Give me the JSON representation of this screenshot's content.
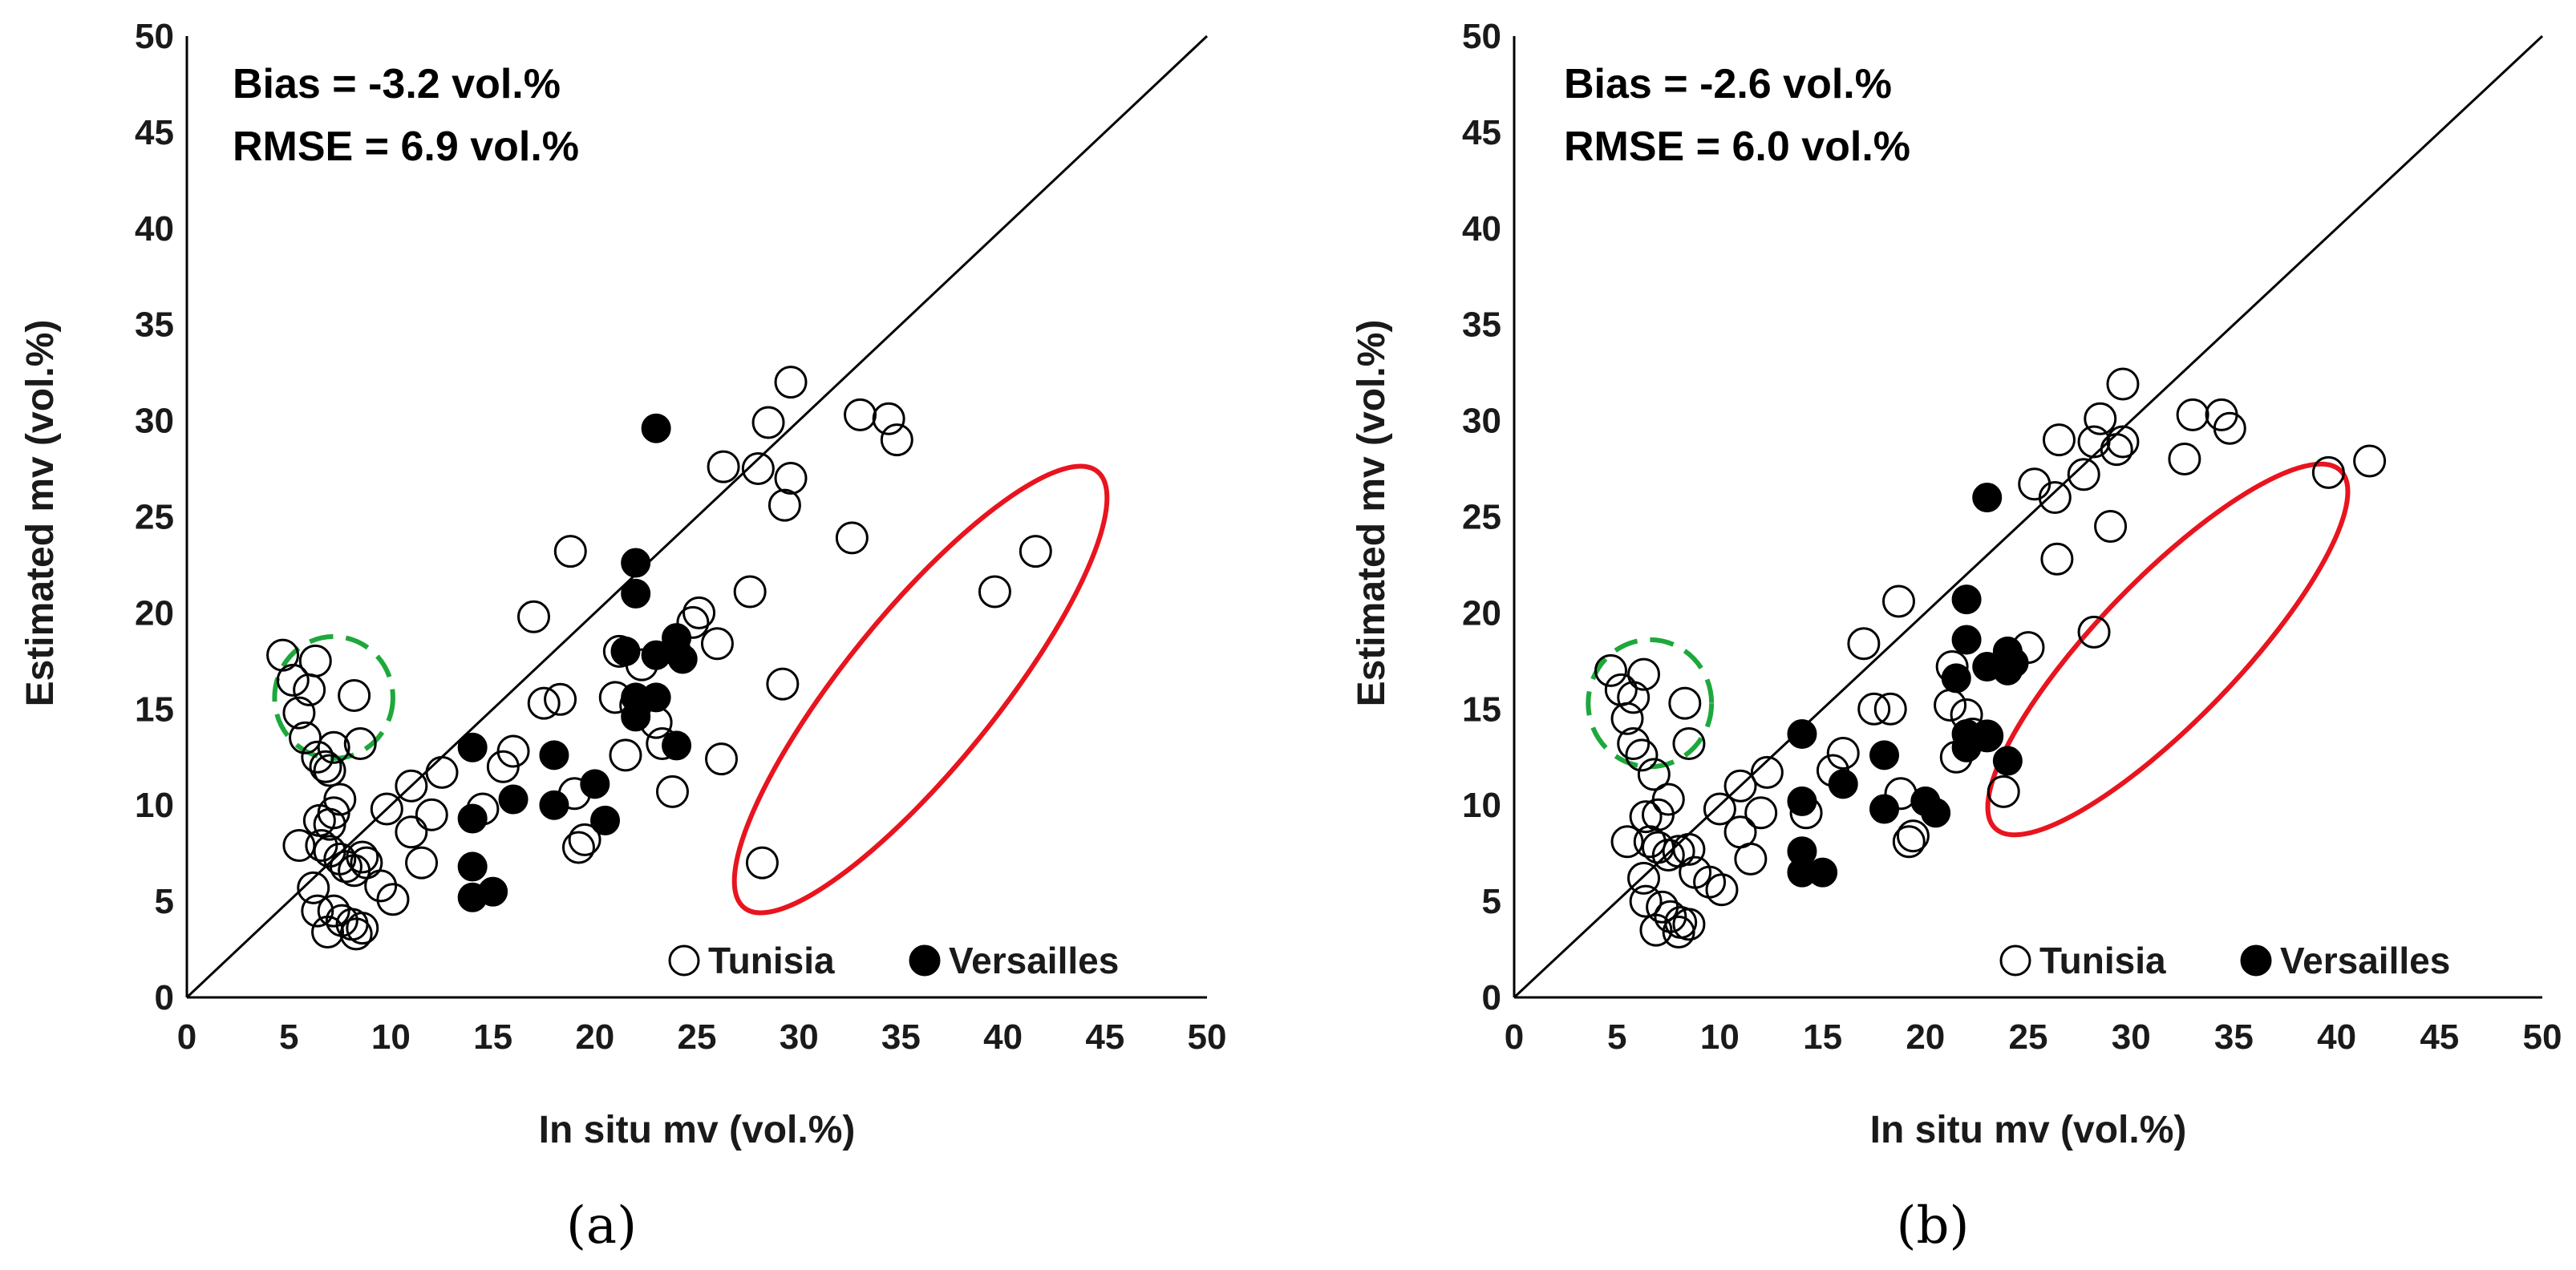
{
  "chart_data": [
    {
      "type": "scatter",
      "panel_label": "(a)",
      "xlabel": "In situ mv (vol.%)",
      "ylabel": "Estimated mv (vol.%)",
      "xlim": [
        0,
        50
      ],
      "ylim": [
        0,
        50
      ],
      "xticks": [
        "0",
        "5",
        "10",
        "15",
        "20",
        "25",
        "30",
        "35",
        "40",
        "45",
        "50"
      ],
      "yticks": [
        "0",
        "5",
        "10",
        "15",
        "20",
        "25",
        "30",
        "35",
        "40",
        "45",
        "50"
      ],
      "stats": [
        "Bias = -3.2 vol.%",
        "RMSE = 6.9 vol.%"
      ],
      "one_to_one_line": true,
      "legend": [
        {
          "label": "Tunisia",
          "marker": "open-circle"
        },
        {
          "label": "Versailles",
          "marker": "filled-circle"
        }
      ],
      "series": [
        {
          "name": "Tunisia",
          "points": [
            [
              4.7,
              17.8
            ],
            [
              5.2,
              16.5
            ],
            [
              6.0,
              16.0
            ],
            [
              5.5,
              14.8
            ],
            [
              5.8,
              13.5
            ],
            [
              6.4,
              12.5
            ],
            [
              6.8,
              12.0
            ],
            [
              7.0,
              11.8
            ],
            [
              7.2,
              13.0
            ],
            [
              8.2,
              15.7
            ],
            [
              6.3,
              17.5
            ],
            [
              8.5,
              13.2
            ],
            [
              7.5,
              10.3
            ],
            [
              6.5,
              9.2
            ],
            [
              7.0,
              9.0
            ],
            [
              7.2,
              9.6
            ],
            [
              5.5,
              7.9
            ],
            [
              6.6,
              7.9
            ],
            [
              7.0,
              7.6
            ],
            [
              7.5,
              7.2
            ],
            [
              7.8,
              6.8
            ],
            [
              8.2,
              6.6
            ],
            [
              8.6,
              7.3
            ],
            [
              8.8,
              7.0
            ],
            [
              9.5,
              5.8
            ],
            [
              6.2,
              5.7
            ],
            [
              6.4,
              4.5
            ],
            [
              7.2,
              4.5
            ],
            [
              6.9,
              3.4
            ],
            [
              7.6,
              4.0
            ],
            [
              8.1,
              3.8
            ],
            [
              8.3,
              3.3
            ],
            [
              8.6,
              3.6
            ],
            [
              9.8,
              9.8
            ],
            [
              11.0,
              11.0
            ],
            [
              12.5,
              11.7
            ],
            [
              11.0,
              8.6
            ],
            [
              12.0,
              9.5
            ],
            [
              11.5,
              7.0
            ],
            [
              10.1,
              5.1
            ],
            [
              14.5,
              9.8
            ],
            [
              15.5,
              12.0
            ],
            [
              16.0,
              12.8
            ],
            [
              17.0,
              19.8
            ],
            [
              17.5,
              15.3
            ],
            [
              18.3,
              15.5
            ],
            [
              18.8,
              23.2
            ],
            [
              19.0,
              10.6
            ],
            [
              19.2,
              7.8
            ],
            [
              19.5,
              8.2
            ],
            [
              21.0,
              15.6
            ],
            [
              21.2,
              18.0
            ],
            [
              21.5,
              12.6
            ],
            [
              22.0,
              15.2
            ],
            [
              22.3,
              17.3
            ],
            [
              23.0,
              14.3
            ],
            [
              23.3,
              13.2
            ],
            [
              23.8,
              10.7
            ],
            [
              24.8,
              19.5
            ],
            [
              25.1,
              20.0
            ],
            [
              26.0,
              18.4
            ],
            [
              26.3,
              27.6
            ],
            [
              26.2,
              12.4
            ],
            [
              27.6,
              21.1
            ],
            [
              28.0,
              27.5
            ],
            [
              28.5,
              29.9
            ],
            [
              29.2,
              16.3
            ],
            [
              29.3,
              25.6
            ],
            [
              29.6,
              27.0
            ],
            [
              29.6,
              32.0
            ],
            [
              32.6,
              23.9
            ],
            [
              33.0,
              30.3
            ],
            [
              34.4,
              30.1
            ],
            [
              34.8,
              29.0
            ],
            [
              28.2,
              7.0
            ],
            [
              39.6,
              21.1
            ],
            [
              41.6,
              23.2
            ]
          ]
        },
        {
          "name": "Versailles",
          "points": [
            [
              14.0,
              13.0
            ],
            [
              14.0,
              9.3
            ],
            [
              14.0,
              6.8
            ],
            [
              14.0,
              5.2
            ],
            [
              15.0,
              5.5
            ],
            [
              16.0,
              10.3
            ],
            [
              18.0,
              12.6
            ],
            [
              18.0,
              10.0
            ],
            [
              20.0,
              11.1
            ],
            [
              20.5,
              9.2
            ],
            [
              21.5,
              18.0
            ],
            [
              22.0,
              22.6
            ],
            [
              22.0,
              21.0
            ],
            [
              22.0,
              15.6
            ],
            [
              22.0,
              14.6
            ],
            [
              23.0,
              29.6
            ],
            [
              23.0,
              17.8
            ],
            [
              23.0,
              15.6
            ],
            [
              24.0,
              18.7
            ],
            [
              24.0,
              18.0
            ],
            [
              24.3,
              17.6
            ],
            [
              24.0,
              13.1
            ]
          ]
        }
      ],
      "highlights": [
        {
          "shape": "dashed-circle",
          "color": "#1ea83c",
          "center": [
            7.2,
            15.6
          ],
          "radius_x": 2.9
        },
        {
          "shape": "ellipse",
          "color": "#e8141e"
        }
      ]
    },
    {
      "type": "scatter",
      "panel_label": "(b)",
      "xlabel": "In situ mv (vol.%)",
      "ylabel": "Estimated mv (vol.%)",
      "xlim": [
        0,
        50
      ],
      "ylim": [
        0,
        50
      ],
      "xticks": [
        "0",
        "5",
        "10",
        "15",
        "20",
        "25",
        "30",
        "35",
        "40",
        "45",
        "50"
      ],
      "yticks": [
        "0",
        "5",
        "10",
        "15",
        "20",
        "25",
        "30",
        "35",
        "40",
        "45",
        "50"
      ],
      "stats": [
        "Bias = -2.6 vol.%",
        "RMSE = 6.0 vol.%"
      ],
      "one_to_one_line": true,
      "legend": [
        {
          "label": "Tunisia",
          "marker": "open-circle"
        },
        {
          "label": "Versailles",
          "marker": "filled-circle"
        }
      ],
      "series": [
        {
          "name": "Tunisia",
          "points": [
            [
              4.7,
              17.0
            ],
            [
              5.2,
              16.0
            ],
            [
              5.8,
              15.6
            ],
            [
              5.5,
              14.5
            ],
            [
              5.8,
              13.2
            ],
            [
              6.2,
              12.6
            ],
            [
              6.8,
              11.6
            ],
            [
              6.3,
              16.8
            ],
            [
              8.3,
              15.3
            ],
            [
              8.5,
              13.2
            ],
            [
              7.5,
              10.3
            ],
            [
              6.4,
              9.4
            ],
            [
              7.0,
              9.5
            ],
            [
              5.5,
              8.1
            ],
            [
              6.6,
              8.1
            ],
            [
              7.0,
              7.8
            ],
            [
              7.5,
              7.4
            ],
            [
              8.0,
              7.6
            ],
            [
              8.5,
              7.7
            ],
            [
              8.8,
              6.5
            ],
            [
              9.5,
              6.0
            ],
            [
              6.3,
              6.2
            ],
            [
              6.4,
              5.0
            ],
            [
              7.2,
              4.7
            ],
            [
              6.9,
              3.5
            ],
            [
              7.6,
              4.2
            ],
            [
              8.1,
              3.9
            ],
            [
              8.0,
              3.4
            ],
            [
              8.5,
              3.8
            ],
            [
              10.0,
              9.8
            ],
            [
              11.0,
              11.0
            ],
            [
              12.3,
              11.7
            ],
            [
              11.0,
              8.6
            ],
            [
              12.0,
              9.6
            ],
            [
              11.5,
              7.2
            ],
            [
              10.1,
              5.6
            ],
            [
              14.2,
              9.6
            ],
            [
              15.5,
              11.8
            ],
            [
              16.0,
              12.7
            ],
            [
              17.0,
              18.4
            ],
            [
              17.5,
              15.0
            ],
            [
              18.3,
              15.0
            ],
            [
              18.7,
              20.6
            ],
            [
              18.8,
              10.6
            ],
            [
              19.2,
              8.1
            ],
            [
              19.4,
              8.4
            ],
            [
              21.2,
              15.2
            ],
            [
              21.3,
              17.2
            ],
            [
              21.5,
              12.5
            ],
            [
              22.0,
              14.7
            ],
            [
              22.3,
              13.7
            ],
            [
              23.0,
              13.6
            ],
            [
              23.8,
              10.7
            ],
            [
              25.0,
              18.2
            ],
            [
              25.3,
              26.7
            ],
            [
              26.3,
              26.0
            ],
            [
              26.4,
              22.8
            ],
            [
              26.5,
              29.0
            ],
            [
              27.7,
              27.2
            ],
            [
              28.2,
              28.9
            ],
            [
              28.5,
              30.1
            ],
            [
              29.0,
              24.5
            ],
            [
              29.3,
              28.5
            ],
            [
              29.6,
              28.9
            ],
            [
              29.6,
              31.9
            ],
            [
              32.6,
              28.0
            ],
            [
              33.0,
              30.3
            ],
            [
              34.4,
              30.3
            ],
            [
              34.8,
              29.6
            ],
            [
              28.2,
              19.0
            ],
            [
              39.6,
              27.3
            ],
            [
              41.6,
              27.9
            ]
          ]
        },
        {
          "name": "Versailles",
          "points": [
            [
              14.0,
              13.7
            ],
            [
              14.0,
              10.2
            ],
            [
              14.0,
              7.6
            ],
            [
              14.0,
              6.5
            ],
            [
              15.0,
              6.5
            ],
            [
              16.0,
              11.1
            ],
            [
              18.0,
              12.6
            ],
            [
              18.0,
              9.8
            ],
            [
              20.0,
              10.2
            ],
            [
              20.5,
              9.6
            ],
            [
              21.5,
              16.6
            ],
            [
              22.0,
              20.7
            ],
            [
              22.0,
              18.6
            ],
            [
              22.0,
              13.7
            ],
            [
              22.0,
              13.0
            ],
            [
              23.0,
              26.0
            ],
            [
              23.0,
              17.2
            ],
            [
              23.0,
              13.6
            ],
            [
              24.0,
              18.0
            ],
            [
              24.0,
              17.0
            ],
            [
              24.3,
              17.4
            ],
            [
              24.0,
              12.3
            ]
          ]
        }
      ],
      "highlights": [
        {
          "shape": "dashed-circle",
          "color": "#1ea83c",
          "center": [
            6.6,
            15.3
          ],
          "radius_x": 3.0
        },
        {
          "shape": "ellipse",
          "color": "#e8141e"
        }
      ]
    }
  ]
}
